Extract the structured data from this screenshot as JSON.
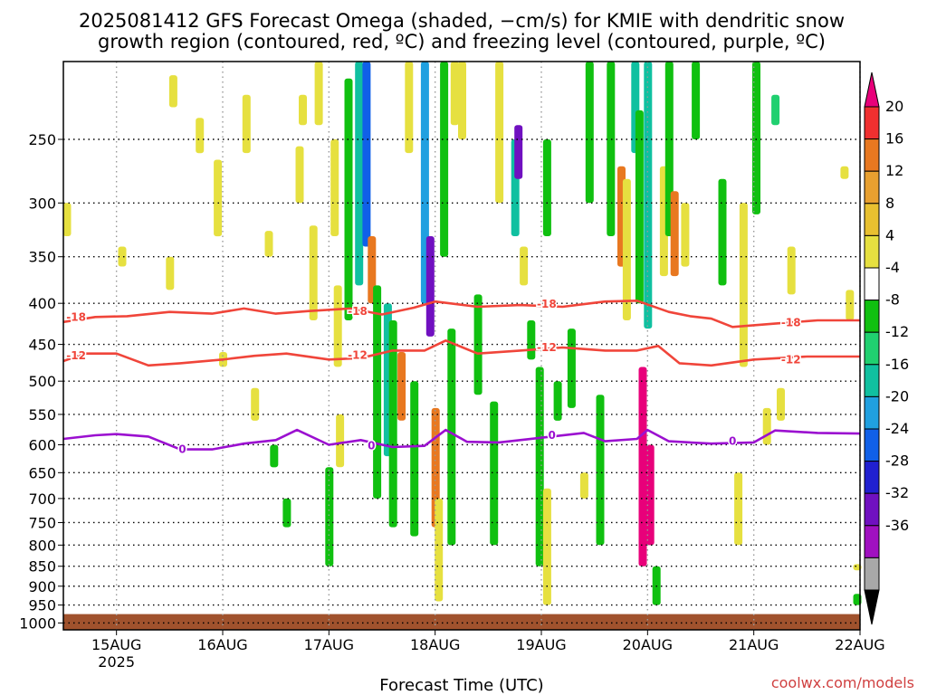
{
  "header": {
    "title_line1": "2025081412 GFS Forecast Omega (shaded, −cm/s) for KMIE with dendritic snow",
    "title_line2": "growth region (contoured, red, ºC) and freezing level (contoured, purple, ºC)"
  },
  "footer": {
    "xlabel": "Forecast Time (UTC)",
    "credit": "coolwx.com/models"
  },
  "colors": {
    "ground": "#a0522d",
    "dgz_contour": "#f0453a",
    "freezing_contour": "#9b10d0",
    "credit": "#d04040"
  },
  "chart_data": {
    "type": "heatmap",
    "x_ticks": [
      "15AUG",
      "16AUG",
      "17AUG",
      "18AUG",
      "19AUG",
      "20AUG",
      "21AUG",
      "22AUG"
    ],
    "x_tick_year": "2025",
    "x_range_days": [
      14.5,
      22.0
    ],
    "y_ticks": [
      250,
      300,
      350,
      400,
      450,
      500,
      550,
      600,
      650,
      700,
      750,
      800,
      850,
      900,
      950,
      1000
    ],
    "y_range_hpa": [
      200,
      1020
    ],
    "surface_pressure_hpa": 975,
    "grid": true,
    "colorbar": {
      "labels": [
        "20",
        "16",
        "12",
        "8",
        "4",
        "-4",
        "-8",
        "-12",
        "-16",
        "-20",
        "-24",
        "-28",
        "-32",
        "-36"
      ],
      "colors": [
        "#e8007a",
        "#f03030",
        "#e87820",
        "#e8a030",
        "#e8c030",
        "#e6e040",
        "#ffffff",
        "#10c010",
        "#20d070",
        "#10c0a0",
        "#20a0e0",
        "#1060e8",
        "#2020d0",
        "#7010c0",
        "#a010c0",
        "#a8a8a8",
        "#000000"
      ]
    },
    "contours": [
      {
        "label": "-18",
        "points": [
          [
            14.5,
            422
          ],
          [
            14.8,
            416
          ],
          [
            15.1,
            415
          ],
          [
            15.5,
            410
          ],
          [
            15.9,
            412
          ],
          [
            16.2,
            406
          ],
          [
            16.5,
            412
          ],
          [
            16.8,
            409
          ],
          [
            17.2,
            406
          ],
          [
            17.5,
            413
          ],
          [
            17.8,
            405
          ],
          [
            18.0,
            398
          ],
          [
            18.4,
            404
          ],
          [
            18.8,
            402
          ],
          [
            19.2,
            404
          ],
          [
            19.6,
            398
          ],
          [
            19.9,
            397
          ],
          [
            20.2,
            410
          ],
          [
            20.4,
            415
          ],
          [
            20.6,
            418
          ],
          [
            20.8,
            428
          ],
          [
            21.2,
            424
          ],
          [
            21.6,
            420
          ],
          [
            22.0,
            420
          ]
        ]
      },
      {
        "label": "-12",
        "points": [
          [
            14.5,
            472
          ],
          [
            14.7,
            462
          ],
          [
            15.0,
            462
          ],
          [
            15.3,
            478
          ],
          [
            15.6,
            475
          ],
          [
            16.0,
            470
          ],
          [
            16.3,
            465
          ],
          [
            16.6,
            462
          ],
          [
            17.0,
            470
          ],
          [
            17.3,
            468
          ],
          [
            17.6,
            458
          ],
          [
            17.9,
            458
          ],
          [
            18.1,
            445
          ],
          [
            18.4,
            462
          ],
          [
            18.8,
            458
          ],
          [
            19.2,
            454
          ],
          [
            19.6,
            458
          ],
          [
            19.9,
            458
          ],
          [
            20.1,
            452
          ],
          [
            20.3,
            475
          ],
          [
            20.6,
            478
          ],
          [
            21.0,
            470
          ],
          [
            21.5,
            466
          ],
          [
            22.0,
            466
          ]
        ]
      },
      {
        "label": "0",
        "points": [
          [
            14.5,
            590
          ],
          [
            14.8,
            584
          ],
          [
            15.0,
            582
          ],
          [
            15.3,
            586
          ],
          [
            15.6,
            608
          ],
          [
            15.9,
            608
          ],
          [
            16.2,
            598
          ],
          [
            16.5,
            592
          ],
          [
            16.7,
            575
          ],
          [
            17.0,
            600
          ],
          [
            17.3,
            592
          ],
          [
            17.6,
            604
          ],
          [
            17.9,
            602
          ],
          [
            18.1,
            575
          ],
          [
            18.3,
            595
          ],
          [
            18.6,
            596
          ],
          [
            19.0,
            588
          ],
          [
            19.4,
            580
          ],
          [
            19.6,
            594
          ],
          [
            19.9,
            590
          ],
          [
            20.0,
            575
          ],
          [
            20.2,
            594
          ],
          [
            20.6,
            598
          ],
          [
            21.0,
            596
          ],
          [
            21.2,
            576
          ],
          [
            21.6,
            580
          ],
          [
            22.0,
            581
          ]
        ]
      }
    ],
    "contour_labels": [
      {
        "text": "-18",
        "x": 14.62,
        "p": 416
      },
      {
        "text": "-18",
        "x": 17.27,
        "p": 409
      },
      {
        "text": "-18",
        "x": 19.05,
        "p": 401
      },
      {
        "text": "-18",
        "x": 21.35,
        "p": 423
      },
      {
        "text": "-12",
        "x": 14.62,
        "p": 465
      },
      {
        "text": "-12",
        "x": 17.27,
        "p": 464
      },
      {
        "text": "-12",
        "x": 19.05,
        "p": 454
      },
      {
        "text": "-12",
        "x": 21.35,
        "p": 470
      },
      {
        "text": "0",
        "x": 15.62,
        "p": 608
      },
      {
        "text": "0",
        "x": 17.4,
        "p": 602
      },
      {
        "text": "0",
        "x": 19.1,
        "p": 584
      },
      {
        "text": "0",
        "x": 20.8,
        "p": 594
      }
    ],
    "cells": [
      {
        "x": 14.53,
        "p1": 300,
        "p2": 330,
        "color": "#e6e040"
      },
      {
        "x": 15.05,
        "p1": 340,
        "p2": 360,
        "color": "#e6e040"
      },
      {
        "x": 15.5,
        "p1": 350,
        "p2": 385,
        "color": "#e6e040"
      },
      {
        "x": 15.53,
        "p1": 208,
        "p2": 228,
        "color": "#e6e040"
      },
      {
        "x": 15.78,
        "p1": 235,
        "p2": 260,
        "color": "#e6e040"
      },
      {
        "x": 15.95,
        "p1": 265,
        "p2": 330,
        "color": "#e6e040"
      },
      {
        "x": 16.22,
        "p1": 220,
        "p2": 260,
        "color": "#e6e040"
      },
      {
        "x": 16.43,
        "p1": 325,
        "p2": 350,
        "color": "#e6e040"
      },
      {
        "x": 16.3,
        "p1": 510,
        "p2": 560,
        "color": "#e6e040"
      },
      {
        "x": 16.0,
        "p1": 460,
        "p2": 480,
        "color": "#e6e040"
      },
      {
        "x": 16.48,
        "p1": 600,
        "p2": 640,
        "color": "#10c010"
      },
      {
        "x": 16.6,
        "p1": 700,
        "p2": 760,
        "color": "#10c010"
      },
      {
        "x": 16.72,
        "p1": 255,
        "p2": 300,
        "color": "#e6e040"
      },
      {
        "x": 16.75,
        "p1": 220,
        "p2": 240,
        "color": "#e6e040"
      },
      {
        "x": 16.85,
        "p1": 320,
        "p2": 420,
        "color": "#e6e040"
      },
      {
        "x": 16.9,
        "p1": 200,
        "p2": 240,
        "color": "#e6e040"
      },
      {
        "x": 17.05,
        "p1": 250,
        "p2": 330,
        "color": "#e6e040"
      },
      {
        "x": 17.08,
        "p1": 380,
        "p2": 480,
        "color": "#e6e040"
      },
      {
        "x": 17.0,
        "p1": 640,
        "p2": 850,
        "color": "#10c010"
      },
      {
        "x": 17.1,
        "p1": 550,
        "p2": 640,
        "color": "#e6e040"
      },
      {
        "x": 17.18,
        "p1": 210,
        "p2": 420,
        "color": "#10c010"
      },
      {
        "x": 17.28,
        "p1": 200,
        "p2": 380,
        "color": "#10c0a0"
      },
      {
        "x": 17.35,
        "p1": 200,
        "p2": 340,
        "color": "#1060e8"
      },
      {
        "x": 17.4,
        "p1": 330,
        "p2": 400,
        "color": "#e87820"
      },
      {
        "x": 17.45,
        "p1": 380,
        "p2": 700,
        "color": "#10c010"
      },
      {
        "x": 17.55,
        "p1": 400,
        "p2": 620,
        "color": "#10c0a0"
      },
      {
        "x": 17.6,
        "p1": 420,
        "p2": 760,
        "color": "#10c010"
      },
      {
        "x": 17.68,
        "p1": 460,
        "p2": 560,
        "color": "#e87820"
      },
      {
        "x": 17.75,
        "p1": 200,
        "p2": 260,
        "color": "#e6e040"
      },
      {
        "x": 17.8,
        "p1": 500,
        "p2": 780,
        "color": "#10c010"
      },
      {
        "x": 17.9,
        "p1": 200,
        "p2": 400,
        "color": "#20a0e0"
      },
      {
        "x": 17.95,
        "p1": 330,
        "p2": 440,
        "color": "#7010c0"
      },
      {
        "x": 18.0,
        "p1": 540,
        "p2": 760,
        "color": "#e87820"
      },
      {
        "x": 18.03,
        "p1": 700,
        "p2": 940,
        "color": "#e6e040"
      },
      {
        "x": 18.08,
        "p1": 200,
        "p2": 350,
        "color": "#10c010"
      },
      {
        "x": 18.15,
        "p1": 430,
        "p2": 800,
        "color": "#10c010"
      },
      {
        "x": 18.18,
        "p1": 200,
        "p2": 240,
        "color": "#e6e040"
      },
      {
        "x": 18.25,
        "p1": 200,
        "p2": 250,
        "color": "#e6e040"
      },
      {
        "x": 18.4,
        "p1": 390,
        "p2": 520,
        "color": "#10c010"
      },
      {
        "x": 18.55,
        "p1": 530,
        "p2": 800,
        "color": "#10c010"
      },
      {
        "x": 18.6,
        "p1": 200,
        "p2": 300,
        "color": "#e6e040"
      },
      {
        "x": 18.75,
        "p1": 250,
        "p2": 330,
        "color": "#10c0a0"
      },
      {
        "x": 18.78,
        "p1": 240,
        "p2": 280,
        "color": "#7010c0"
      },
      {
        "x": 18.83,
        "p1": 340,
        "p2": 380,
        "color": "#e6e040"
      },
      {
        "x": 18.9,
        "p1": 420,
        "p2": 470,
        "color": "#10c010"
      },
      {
        "x": 18.98,
        "p1": 480,
        "p2": 850,
        "color": "#10c010"
      },
      {
        "x": 19.05,
        "p1": 250,
        "p2": 330,
        "color": "#10c010"
      },
      {
        "x": 19.05,
        "p1": 680,
        "p2": 950,
        "color": "#e6e040"
      },
      {
        "x": 19.15,
        "p1": 500,
        "p2": 560,
        "color": "#10c010"
      },
      {
        "x": 19.28,
        "p1": 430,
        "p2": 540,
        "color": "#10c010"
      },
      {
        "x": 19.4,
        "p1": 650,
        "p2": 700,
        "color": "#e6e040"
      },
      {
        "x": 19.45,
        "p1": 200,
        "p2": 300,
        "color": "#10c010"
      },
      {
        "x": 19.55,
        "p1": 520,
        "p2": 800,
        "color": "#10c010"
      },
      {
        "x": 19.65,
        "p1": 200,
        "p2": 330,
        "color": "#10c010"
      },
      {
        "x": 19.75,
        "p1": 270,
        "p2": 360,
        "color": "#e87820"
      },
      {
        "x": 19.8,
        "p1": 280,
        "p2": 420,
        "color": "#e6e040"
      },
      {
        "x": 19.88,
        "p1": 200,
        "p2": 260,
        "color": "#10c0a0"
      },
      {
        "x": 19.92,
        "p1": 230,
        "p2": 400,
        "color": "#10c010"
      },
      {
        "x": 19.95,
        "p1": 480,
        "p2": 850,
        "color": "#e8007a"
      },
      {
        "x": 20.0,
        "p1": 200,
        "p2": 430,
        "color": "#10c0a0"
      },
      {
        "x": 20.02,
        "p1": 600,
        "p2": 800,
        "color": "#e8007a"
      },
      {
        "x": 20.08,
        "p1": 850,
        "p2": 950,
        "color": "#10c010"
      },
      {
        "x": 20.15,
        "p1": 270,
        "p2": 370,
        "color": "#e6e040"
      },
      {
        "x": 20.2,
        "p1": 200,
        "p2": 330,
        "color": "#10c010"
      },
      {
        "x": 20.25,
        "p1": 290,
        "p2": 370,
        "color": "#e87820"
      },
      {
        "x": 20.35,
        "p1": 300,
        "p2": 360,
        "color": "#e6e040"
      },
      {
        "x": 20.45,
        "p1": 200,
        "p2": 250,
        "color": "#10c010"
      },
      {
        "x": 20.7,
        "p1": 280,
        "p2": 380,
        "color": "#10c010"
      },
      {
        "x": 20.85,
        "p1": 650,
        "p2": 800,
        "color": "#e6e040"
      },
      {
        "x": 20.9,
        "p1": 300,
        "p2": 480,
        "color": "#e6e040"
      },
      {
        "x": 21.02,
        "p1": 200,
        "p2": 310,
        "color": "#10c010"
      },
      {
        "x": 21.12,
        "p1": 540,
        "p2": 600,
        "color": "#e6e040"
      },
      {
        "x": 21.25,
        "p1": 510,
        "p2": 560,
        "color": "#e6e040"
      },
      {
        "x": 21.35,
        "p1": 340,
        "p2": 390,
        "color": "#e6e040"
      },
      {
        "x": 21.2,
        "p1": 220,
        "p2": 240,
        "color": "#20d070"
      },
      {
        "x": 21.85,
        "p1": 270,
        "p2": 280,
        "color": "#e6e040"
      },
      {
        "x": 21.9,
        "p1": 385,
        "p2": 420,
        "color": "#e6e040"
      },
      {
        "x": 21.97,
        "p1": 920,
        "p2": 950,
        "color": "#10c010"
      },
      {
        "x": 21.97,
        "p1": 845,
        "p2": 860,
        "color": "#e6e040"
      }
    ]
  }
}
